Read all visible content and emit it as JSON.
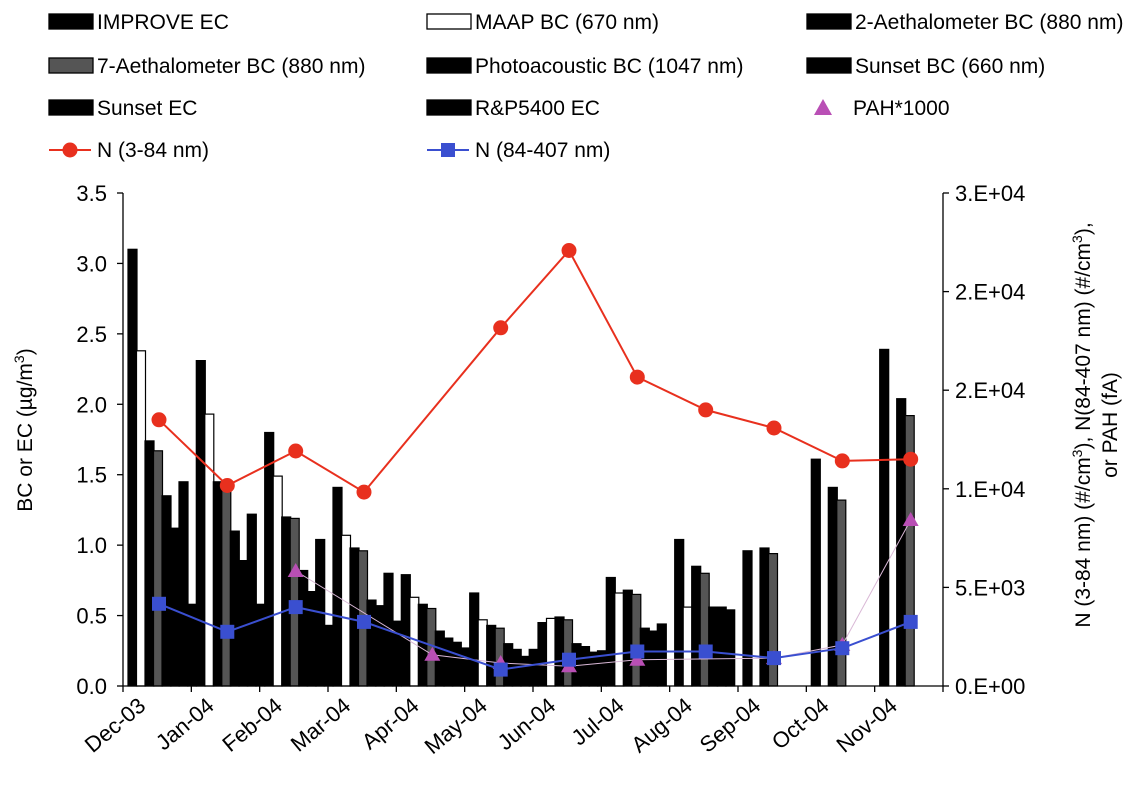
{
  "chart_data": {
    "type": "bar",
    "categories": [
      "Dec-03",
      "Jan-04",
      "Feb-04",
      "Mar-04",
      "Apr-04",
      "May-04",
      "Jun-04",
      "Jul-04",
      "Aug-04",
      "Sep-04",
      "Oct-04",
      "Nov-04"
    ],
    "left_axis": {
      "ylim": [
        0,
        3.5
      ],
      "ticks": [
        "0.0",
        "0.5",
        "1.0",
        "1.5",
        "2.0",
        "2.5",
        "3.0",
        "3.5"
      ],
      "title_parts": [
        "BC or EC (µg/m",
        "3",
        ")"
      ]
    },
    "right_axis": {
      "ylim": [
        0,
        30000
      ],
      "ticks": [
        "0.E+00",
        "5.E+03",
        "1.E+04",
        "2.E+04",
        "2.E+04",
        "3.E+04"
      ],
      "title_line1_parts": [
        "N (3-84 nm) (#/cm",
        "3",
        "), N(84-407 nm) (#/cm",
        "3",
        "),"
      ],
      "title_line2": "or PAH (fA)"
    },
    "bar_series": [
      {
        "name": "IMPROVE EC",
        "fill": "#000000",
        "values": [
          3.1,
          2.31,
          1.8,
          1.41,
          0.79,
          0.66,
          0.45,
          0.77,
          1.04,
          0.96,
          1.61,
          2.39
        ]
      },
      {
        "name": "MAAP BC (670 nm)",
        "fill": "#ffffff",
        "values": [
          2.38,
          1.93,
          1.49,
          1.07,
          0.63,
          0.47,
          0.48,
          0.66,
          0.56,
          null,
          null,
          null
        ]
      },
      {
        "name": "2-Aethalometer BC (880 nm)",
        "fill": "#000000",
        "values": [
          1.74,
          1.45,
          1.2,
          0.98,
          0.58,
          0.43,
          0.49,
          0.68,
          0.85,
          0.98,
          1.41,
          2.04
        ]
      },
      {
        "name": "7-Aethalometer BC (880 nm)",
        "fill": "#555555",
        "values": [
          1.67,
          1.43,
          1.19,
          0.96,
          0.55,
          0.41,
          0.47,
          0.65,
          0.8,
          0.94,
          1.32,
          1.92
        ]
      },
      {
        "name": "Photoacoustic BC (1047 nm)",
        "fill": "#000000",
        "values": [
          1.35,
          1.1,
          0.82,
          0.61,
          0.39,
          0.3,
          0.3,
          0.41,
          0.56,
          null,
          null,
          null
        ]
      },
      {
        "name": "Sunset BC (660 nm)",
        "fill": "#000000",
        "values": [
          1.12,
          0.89,
          0.67,
          0.57,
          0.34,
          0.26,
          0.28,
          0.39,
          0.56,
          null,
          null,
          null
        ]
      },
      {
        "name": "Sunset EC",
        "fill": "#000000",
        "values": [
          1.45,
          1.22,
          1.04,
          0.8,
          0.31,
          0.21,
          0.24,
          0.44,
          0.54,
          null,
          null,
          null
        ]
      },
      {
        "name": "R&P5400 EC",
        "fill": "#000000",
        "values": [
          0.58,
          0.58,
          0.43,
          0.46,
          0.27,
          0.26,
          0.25,
          null,
          null,
          null,
          null,
          null
        ]
      }
    ],
    "line_series": [
      {
        "name": "N (3-84 nm)",
        "color": "#e8301e",
        "marker": "circle",
        "values": [
          16200,
          12200,
          14300,
          11800,
          null,
          21800,
          26500,
          18800,
          16800,
          15700,
          13700,
          13800
        ]
      },
      {
        "name": "N (84-407 nm)",
        "color": "#3a4fd0",
        "marker": "square",
        "values": [
          5000,
          3300,
          4800,
          3900,
          null,
          1000,
          1600,
          2100,
          2100,
          1700,
          2300,
          3900
        ]
      }
    ],
    "pah_series": {
      "name": "PAH*1000",
      "color": "#b94fb5",
      "marker": "triangle",
      "values": [
        null,
        null,
        7000,
        null,
        1900,
        1400,
        1200,
        1600,
        null,
        1700,
        2500,
        10100
      ]
    }
  }
}
